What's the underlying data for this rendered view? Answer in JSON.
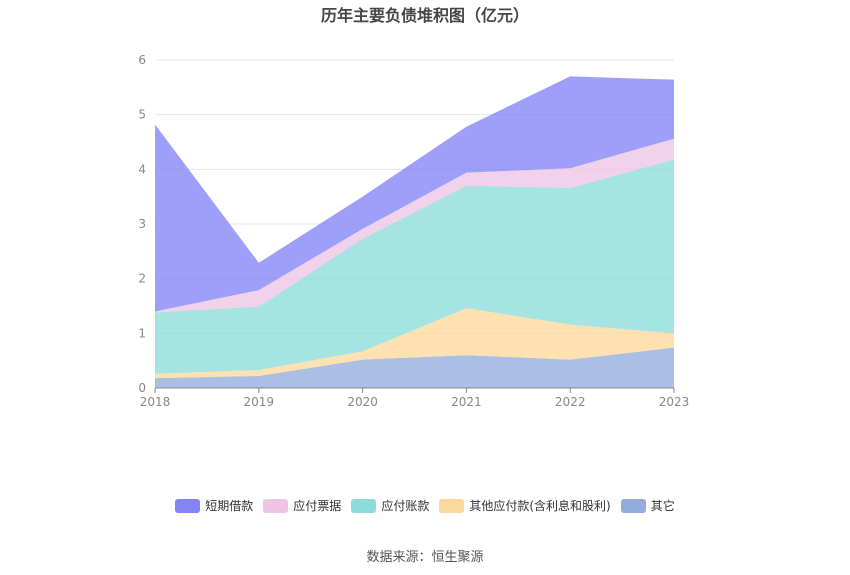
{
  "chart_data": {
    "type": "area",
    "title": "历年主要负债堆积图（亿元）",
    "stacked": true,
    "x": [
      "2018",
      "2019",
      "2020",
      "2021",
      "2022",
      "2023"
    ],
    "ylim": [
      0,
      6
    ],
    "yticks": [
      "0",
      "1",
      "2",
      "3",
      "4",
      "5",
      "6"
    ],
    "grid": true,
    "legend_position": "bottom",
    "series": [
      {
        "name": "其它",
        "color": "#93acdc",
        "values": [
          0.18,
          0.22,
          0.52,
          0.6,
          0.52,
          0.74
        ]
      },
      {
        "name": "其他应付款(含利息和股利)",
        "color": "#fcd99a",
        "values": [
          0.08,
          0.11,
          0.15,
          0.86,
          0.64,
          0.26
        ]
      },
      {
        "name": "应付账款",
        "color": "#8ddbdb",
        "values": [
          1.12,
          1.16,
          2.06,
          2.24,
          2.5,
          3.18
        ]
      },
      {
        "name": "应付票据",
        "color": "#eec4e4",
        "values": [
          0.02,
          0.3,
          0.18,
          0.24,
          0.36,
          0.38
        ]
      },
      {
        "name": "短期借款",
        "color": "#8384f6",
        "values": [
          3.42,
          0.5,
          0.59,
          0.84,
          1.68,
          1.08
        ]
      }
    ],
    "legend_order": [
      "短期借款",
      "应付票据",
      "应付账款",
      "其他应付款(含利息和股利)",
      "其它"
    ]
  },
  "source": "数据来源：恒生聚源"
}
